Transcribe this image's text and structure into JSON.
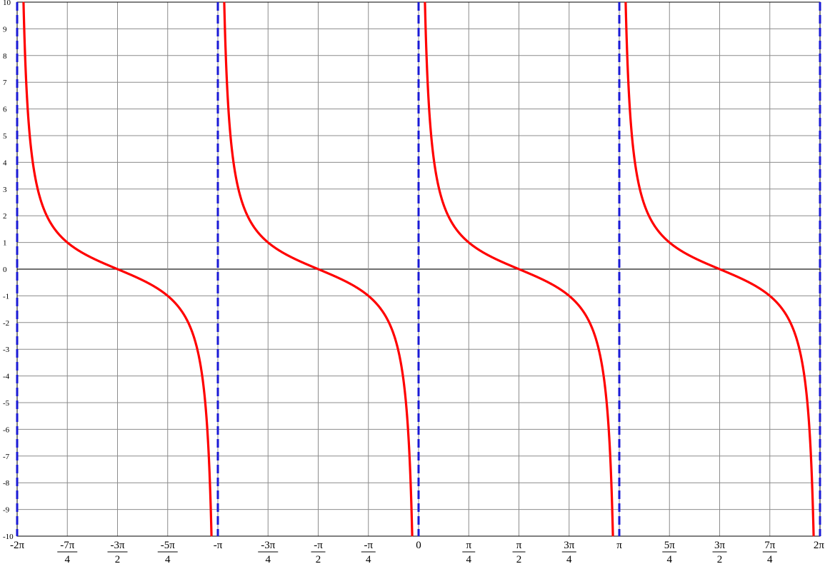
{
  "chart_data": {
    "type": "line",
    "title": "",
    "xlabel": "",
    "ylabel": "",
    "xlim": [
      -6.283185307,
      6.283185307
    ],
    "ylim": [
      -10,
      10
    ],
    "grid": true,
    "function": "cot(x)",
    "curve_color": "#ff0000",
    "asymptote_color": "#1a1ad6",
    "y_ticks": [
      "10",
      "9",
      "8",
      "7",
      "6",
      "5",
      "4",
      "3",
      "2",
      "1",
      "0",
      "-1",
      "-2",
      "-3",
      "-4",
      "-5",
      "-6",
      "-7",
      "-8",
      "-9",
      "-10"
    ],
    "x_ticks": [
      {
        "value": -6.283185307,
        "num": "-2π",
        "den": ""
      },
      {
        "value": -5.497787144,
        "num": "-7π",
        "den": "4"
      },
      {
        "value": -4.71238898,
        "num": "-3π",
        "den": "2"
      },
      {
        "value": -3.926990817,
        "num": "-5π",
        "den": "4"
      },
      {
        "value": -3.141592654,
        "num": "-π",
        "den": ""
      },
      {
        "value": -2.35619449,
        "num": "-3π",
        "den": "4"
      },
      {
        "value": -1.570796327,
        "num": "-π",
        "den": "2"
      },
      {
        "value": -0.785398163,
        "num": "-π",
        "den": "4"
      },
      {
        "value": 0,
        "num": "0",
        "den": ""
      },
      {
        "value": 0.785398163,
        "num": "π",
        "den": "4"
      },
      {
        "value": 1.570796327,
        "num": "π",
        "den": "2"
      },
      {
        "value": 2.35619449,
        "num": "3π",
        "den": "4"
      },
      {
        "value": 3.141592654,
        "num": "π",
        "den": ""
      },
      {
        "value": 3.926990817,
        "num": "5π",
        "den": "4"
      },
      {
        "value": 4.71238898,
        "num": "3π",
        "den": "2"
      },
      {
        "value": 5.497787144,
        "num": "7π",
        "den": "4"
      },
      {
        "value": 6.283185307,
        "num": "2π",
        "den": ""
      }
    ],
    "asymptotes_x": [
      -6.283185307,
      -3.141592654,
      0,
      3.141592654,
      6.283185307
    ],
    "series": [
      {
        "domain": [
          -6.283185307,
          -3.141592654
        ]
      },
      {
        "domain": [
          -3.141592654,
          0
        ]
      },
      {
        "domain": [
          0,
          3.141592654
        ]
      },
      {
        "domain": [
          3.141592654,
          6.283185307
        ]
      }
    ]
  }
}
